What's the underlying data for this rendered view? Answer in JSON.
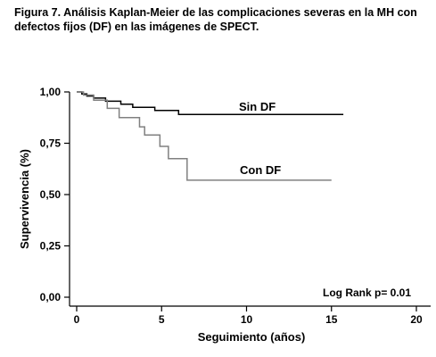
{
  "caption": {
    "line1": "Figura 7. Análisis Kaplan-Meier de las complicaciones severas en la MH con",
    "line2": "defectos fijos (DF) en las imágenes de SPECT."
  },
  "chart_data": {
    "type": "line",
    "step": true,
    "xlabel": "Seguimiento (años)",
    "ylabel": "Supervivencia (%)",
    "xlim": [
      0,
      20
    ],
    "ylim": [
      0,
      1
    ],
    "xticks": [
      0,
      5,
      10,
      15,
      20
    ],
    "yticks": [
      0,
      0.25,
      0.5,
      0.75,
      1.0
    ],
    "xtick_labels": [
      "0",
      "5",
      "10",
      "15",
      "20"
    ],
    "ytick_labels": [
      "0,00",
      "0,25",
      "0,50",
      "0,75",
      "1,00"
    ],
    "grid": false,
    "annotation": "Log Rank p= 0.01",
    "series": [
      {
        "name": "Sin DF",
        "color": "#000000",
        "x": [
          0,
          0.3,
          0.6,
          1.0,
          1.7,
          2.6,
          3.3,
          4.6,
          6.0,
          15.7
        ],
        "y": [
          1.0,
          0.99,
          0.98,
          0.97,
          0.955,
          0.94,
          0.925,
          0.91,
          0.89,
          0.89
        ]
      },
      {
        "name": "Con DF",
        "color": "#808080",
        "x": [
          0,
          0.4,
          1.0,
          1.8,
          2.5,
          3.7,
          4.0,
          4.9,
          5.4,
          6.5,
          15.0
        ],
        "y": [
          1.0,
          0.985,
          0.96,
          0.92,
          0.875,
          0.83,
          0.79,
          0.735,
          0.675,
          0.57,
          0.57
        ]
      }
    ]
  }
}
